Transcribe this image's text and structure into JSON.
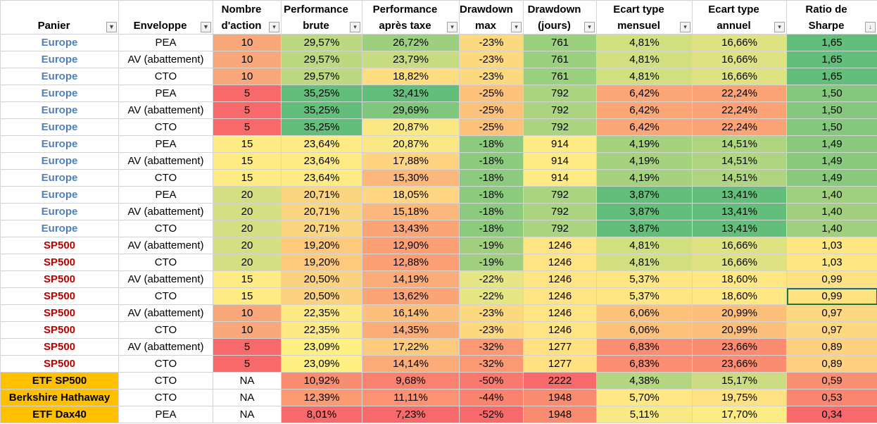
{
  "headers": [
    {
      "l1": "",
      "l2": "Panier",
      "filter": "filter-funnel"
    },
    {
      "l1": "",
      "l2": "Enveloppe",
      "filter": "filter-funnel"
    },
    {
      "l1": "Nombre",
      "l2": "d'action",
      "filter": "dropdown"
    },
    {
      "l1": "Performance",
      "l2": "brute",
      "filter": "dropdown"
    },
    {
      "l1": "Performance",
      "l2": "après taxe",
      "filter": "dropdown"
    },
    {
      "l1": "Drawdown",
      "l2": "max",
      "filter": "dropdown"
    },
    {
      "l1": "Drawdown",
      "l2": "(jours)",
      "filter": "dropdown"
    },
    {
      "l1": "Ecart type",
      "l2": "mensuel",
      "filter": "dropdown"
    },
    {
      "l1": "Ecart type",
      "l2": "annuel",
      "filter": "dropdown"
    },
    {
      "l1": "Ratio de",
      "l2": "Sharpe",
      "filter": "sort-descending"
    }
  ],
  "filter_glyphs": {
    "filter-funnel": "▼",
    "dropdown": "▾",
    "sort-descending": "↓"
  },
  "rows": [
    {
      "panier": "Europe",
      "kind": "eu",
      "env": "PEA",
      "n": "10",
      "pb": "29,57%",
      "pa": "26,72%",
      "dd": "-23%",
      "dj": "761",
      "em": "4,81%",
      "ea": "16,66%",
      "sh": "1,65",
      "colors": [
        "#f8a77a",
        "#bcd880",
        "#9cd07f",
        "#fcd97f",
        "#9ad07f",
        "#d2df81",
        "#dee283",
        "#63be7b"
      ]
    },
    {
      "panier": "Europe",
      "kind": "eu",
      "env": "AV (abattement)",
      "n": "10",
      "pb": "29,57%",
      "pa": "23,79%",
      "dd": "-23%",
      "dj": "761",
      "em": "4,81%",
      "ea": "16,66%",
      "sh": "1,65",
      "colors": [
        "#f8a77a",
        "#bcd880",
        "#c7db81",
        "#fcd97f",
        "#9ad07f",
        "#d2df81",
        "#dee283",
        "#63be7b"
      ]
    },
    {
      "panier": "Europe",
      "kind": "eu",
      "env": "CTO",
      "n": "10",
      "pb": "29,57%",
      "pa": "18,82%",
      "dd": "-23%",
      "dj": "761",
      "em": "4,81%",
      "ea": "16,66%",
      "sh": "1,65",
      "colors": [
        "#f8a77a",
        "#bcd880",
        "#fedd81",
        "#fcd97f",
        "#9ad07f",
        "#d2df81",
        "#dee283",
        "#63be7b"
      ]
    },
    {
      "panier": "Europe",
      "kind": "eu",
      "env": "PEA",
      "n": "5",
      "pb": "35,25%",
      "pa": "32,41%",
      "dd": "-25%",
      "dj": "792",
      "em": "6,42%",
      "ea": "22,24%",
      "sh": "1,50",
      "colors": [
        "#f8696b",
        "#63be7b",
        "#63be7b",
        "#fcc27c",
        "#aad47f",
        "#fba677",
        "#fba276",
        "#85c87d"
      ]
    },
    {
      "panier": "Europe",
      "kind": "eu",
      "env": "AV (abattement)",
      "n": "5",
      "pb": "35,25%",
      "pa": "29,69%",
      "dd": "-25%",
      "dj": "792",
      "em": "6,42%",
      "ea": "22,24%",
      "sh": "1,50",
      "colors": [
        "#f8696b",
        "#63be7b",
        "#7fc77d",
        "#fcc27c",
        "#aad47f",
        "#fba677",
        "#fba276",
        "#85c87d"
      ]
    },
    {
      "panier": "Europe",
      "kind": "eu",
      "env": "CTO",
      "n": "5",
      "pb": "35,25%",
      "pa": "20,87%",
      "dd": "-25%",
      "dj": "792",
      "em": "6,42%",
      "ea": "22,24%",
      "sh": "1,50",
      "colors": [
        "#f8696b",
        "#63be7b",
        "#f9e883",
        "#fcc27c",
        "#aad47f",
        "#fba677",
        "#fba276",
        "#85c87d"
      ]
    },
    {
      "panier": "Europe",
      "kind": "eu",
      "env": "PEA",
      "n": "15",
      "pb": "23,64%",
      "pa": "20,87%",
      "dd": "-18%",
      "dj": "914",
      "em": "4,19%",
      "ea": "14,51%",
      "sh": "1,49",
      "colors": [
        "#ffeb84",
        "#ffeb84",
        "#f9e883",
        "#8ccb7e",
        "#ffeb84",
        "#a6d27f",
        "#b0d580",
        "#88c97d"
      ]
    },
    {
      "panier": "Europe",
      "kind": "eu",
      "env": "AV (abattement)",
      "n": "15",
      "pb": "23,64%",
      "pa": "17,88%",
      "dd": "-18%",
      "dj": "914",
      "em": "4,19%",
      "ea": "14,51%",
      "sh": "1,49",
      "colors": [
        "#ffeb84",
        "#ffeb84",
        "#fed480",
        "#8ccb7e",
        "#ffeb84",
        "#a6d27f",
        "#b0d580",
        "#88c97d"
      ]
    },
    {
      "panier": "Europe",
      "kind": "eu",
      "env": "CTO",
      "n": "15",
      "pb": "23,64%",
      "pa": "15,30%",
      "dd": "-18%",
      "dj": "914",
      "em": "4,19%",
      "ea": "14,51%",
      "sh": "1,49",
      "colors": [
        "#ffeb84",
        "#ffeb84",
        "#fcb87a",
        "#8ccb7e",
        "#ffeb84",
        "#a6d27f",
        "#b0d580",
        "#88c97d"
      ]
    },
    {
      "panier": "Europe",
      "kind": "eu",
      "env": "PEA",
      "n": "20",
      "pb": "20,71%",
      "pa": "18,05%",
      "dd": "-18%",
      "dj": "792",
      "em": "3,87%",
      "ea": "13,41%",
      "sh": "1,40",
      "colors": [
        "#d3df82",
        "#fbd57f",
        "#fed580",
        "#8ccb7e",
        "#aad47f",
        "#63be7b",
        "#63be7b",
        "#a0d07f"
      ]
    },
    {
      "panier": "Europe",
      "kind": "eu",
      "env": "AV (abattement)",
      "n": "20",
      "pb": "20,71%",
      "pa": "15,18%",
      "dd": "-18%",
      "dj": "792",
      "em": "3,87%",
      "ea": "13,41%",
      "sh": "1,40",
      "colors": [
        "#d3df82",
        "#fbd57f",
        "#fcb77a",
        "#8ccb7e",
        "#aad47f",
        "#63be7b",
        "#63be7b",
        "#a0d07f"
      ]
    },
    {
      "panier": "Europe",
      "kind": "eu",
      "env": "CTO",
      "n": "20",
      "pb": "20,71%",
      "pa": "13,43%",
      "dd": "-18%",
      "dj": "792",
      "em": "3,87%",
      "ea": "13,41%",
      "sh": "1,40",
      "colors": [
        "#d3df82",
        "#fbd57f",
        "#fba476",
        "#8ccb7e",
        "#aad47f",
        "#63be7b",
        "#63be7b",
        "#a0d07f"
      ]
    },
    {
      "panier": "SP500",
      "kind": "sp",
      "env": "AV (abattement)",
      "n": "20",
      "pb": "19,20%",
      "pa": "12,90%",
      "dd": "-19%",
      "dj": "1246",
      "em": "4,81%",
      "ea": "16,66%",
      "sh": "1,03",
      "colors": [
        "#d3df82",
        "#fcc97d",
        "#fc9f75",
        "#a0d07f",
        "#ffe483",
        "#d2df81",
        "#dee283",
        "#fee683"
      ]
    },
    {
      "panier": "SP500",
      "kind": "sp",
      "env": "CTO",
      "n": "20",
      "pb": "19,20%",
      "pa": "12,88%",
      "dd": "-19%",
      "dj": "1246",
      "em": "4,81%",
      "ea": "16,66%",
      "sh": "1,03",
      "colors": [
        "#d3df82",
        "#fcc97d",
        "#fc9f75",
        "#a0d07f",
        "#ffe483",
        "#d2df81",
        "#dee283",
        "#fee683"
      ]
    },
    {
      "panier": "SP500",
      "kind": "sp",
      "env": "AV (abattement)",
      "n": "15",
      "pb": "20,50%",
      "pa": "14,19%",
      "dd": "-22%",
      "dj": "1246",
      "em": "5,37%",
      "ea": "18,60%",
      "sh": "0,99",
      "colors": [
        "#ffeb84",
        "#fbd27f",
        "#fbac78",
        "#e5e583",
        "#ffe483",
        "#fee683",
        "#ffe884",
        "#fee282"
      ]
    },
    {
      "panier": "SP500",
      "kind": "sp",
      "env": "CTO",
      "n": "15",
      "pb": "20,50%",
      "pa": "13,62%",
      "dd": "-22%",
      "dj": "1246",
      "em": "5,37%",
      "ea": "18,60%",
      "sh": "0,99",
      "colors": [
        "#ffeb84",
        "#fbd27f",
        "#fba576",
        "#e5e583",
        "#ffe483",
        "#fee683",
        "#ffe884",
        "#fee282"
      ]
    },
    {
      "panier": "SP500",
      "kind": "sp",
      "env": "AV (abattement)",
      "n": "10",
      "pb": "22,35%",
      "pa": "16,14%",
      "dd": "-23%",
      "dj": "1246",
      "em": "6,06%",
      "ea": "20,99%",
      "sh": "0,97",
      "colors": [
        "#f8a77a",
        "#feea84",
        "#fcc07c",
        "#fcd97f",
        "#ffe483",
        "#fcc27c",
        "#fcbf7b",
        "#fdd880"
      ]
    },
    {
      "panier": "SP500",
      "kind": "sp",
      "env": "CTO",
      "n": "10",
      "pb": "22,35%",
      "pa": "14,35%",
      "dd": "-23%",
      "dj": "1246",
      "em": "6,06%",
      "ea": "20,99%",
      "sh": "0,97",
      "colors": [
        "#f8a77a",
        "#feea84",
        "#fbad78",
        "#fcd97f",
        "#ffe483",
        "#fcc27c",
        "#fcbf7b",
        "#fdd880"
      ]
    },
    {
      "panier": "SP500",
      "kind": "sp",
      "env": "AV (abattement)",
      "n": "5",
      "pb": "23,09%",
      "pa": "17,22%",
      "dd": "-32%",
      "dj": "1277",
      "em": "6,83%",
      "ea": "23,66%",
      "sh": "0,89",
      "colors": [
        "#f8696b",
        "#fff084",
        "#fdcb7e",
        "#fb9974",
        "#ffe182",
        "#fb8e72",
        "#fb8c71",
        "#fdd17f"
      ]
    },
    {
      "panier": "SP500",
      "kind": "sp",
      "env": "CTO",
      "n": "5",
      "pb": "23,09%",
      "pa": "14,14%",
      "dd": "-32%",
      "dj": "1277",
      "em": "6,83%",
      "ea": "23,66%",
      "sh": "0,89",
      "colors": [
        "#f8696b",
        "#fff084",
        "#fbab78",
        "#fb9974",
        "#ffe182",
        "#fb8e72",
        "#fb8c71",
        "#fdd17f"
      ]
    },
    {
      "panier": "ETF SP500",
      "kind": "etf",
      "env": "CTO",
      "n": "NA",
      "pb": "10,92%",
      "pa": "9,68%",
      "dd": "-50%",
      "dj": "2222",
      "em": "4,38%",
      "ea": "15,17%",
      "sh": "0,59",
      "colors": [
        "#ffffff",
        "#f98d72",
        "#fa8170",
        "#f9796e",
        "#f8696b",
        "#b5d680",
        "#cbdb81",
        "#f99073"
      ]
    },
    {
      "panier": "Berkshire Hathaway",
      "kind": "etf",
      "env": "CTO",
      "n": "NA",
      "pb": "12,39%",
      "pa": "11,11%",
      "dd": "-44%",
      "dj": "1948",
      "em": "5,70%",
      "ea": "19,75%",
      "sh": "0,53",
      "colors": [
        "#ffffff",
        "#fa9b74",
        "#fb9273",
        "#f9836f",
        "#f98b71",
        "#ffe884",
        "#fde182",
        "#f98670"
      ]
    },
    {
      "panier": "ETF Dax40",
      "kind": "etf",
      "env": "PEA",
      "n": "NA",
      "pb": "8,01%",
      "pa": "7,23%",
      "dd": "-52%",
      "dj": "1948",
      "em": "5,11%",
      "ea": "17,70%",
      "sh": "0,34",
      "colors": [
        "#ffffff",
        "#f8696b",
        "#f8696b",
        "#f8696b",
        "#f98b71",
        "#f7e984",
        "#fcec84",
        "#f8696b"
      ]
    }
  ]
}
